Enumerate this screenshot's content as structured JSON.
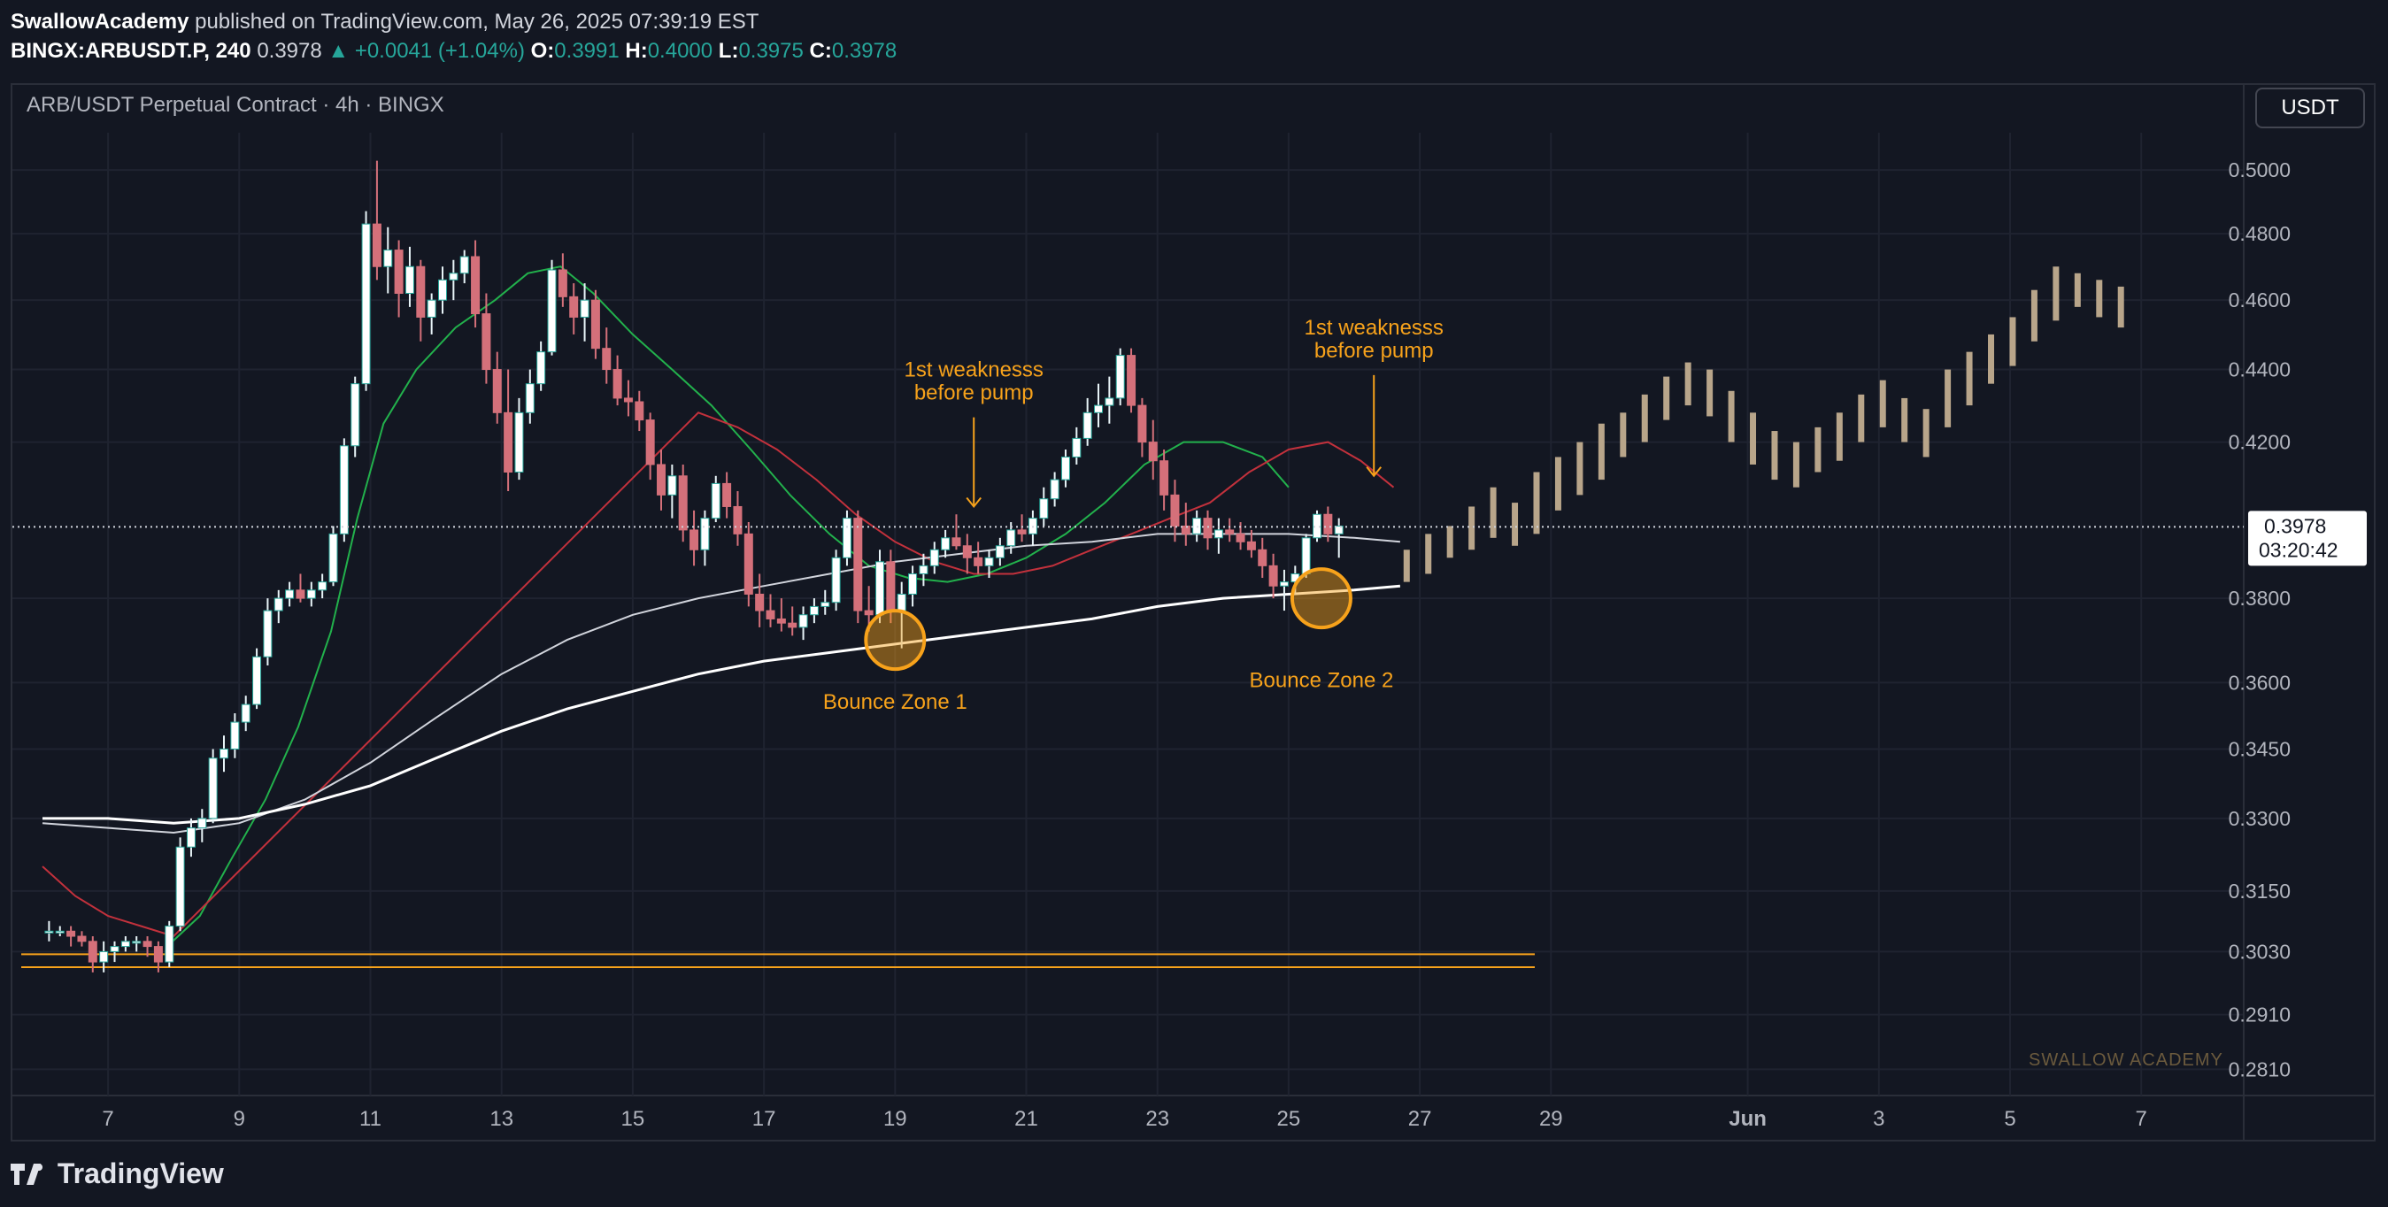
{
  "header": {
    "author": "SwallowAcademy",
    "published": "published on TradingView.com, May 26, 2025 07:39:19 EST",
    "symbol": "BINGX:ARBUSDT.P, 240",
    "last": "0.3978",
    "change": "▲ +0.0041 (+1.04%)",
    "o_label": "O:",
    "o_value": "0.3991",
    "h_label": "H:",
    "h_value": "0.4000",
    "l_label": "L:",
    "l_value": "0.3975",
    "c_label": "C:",
    "c_value": "0.3978"
  },
  "legend": {
    "title": "ARB/USDT Perpetual Contract · 4h · BINGX"
  },
  "currency_button": "USDT",
  "price_label": {
    "value": "0.3978",
    "countdown": "03:20:42"
  },
  "watermark": "SWALLOW ACADEMY",
  "footer": {
    "brand": "TradingView"
  },
  "colors": {
    "background": "#131722",
    "up": "#26a69a",
    "down": "#ef5350",
    "candle_up": "#e8f4f8",
    "candle_down": "#d4707a",
    "ema_fast": "#22b14c",
    "ema_mid": "#c2313c",
    "ma_slow": "#d1d4dc",
    "ma_long": "#ffffff",
    "annotation": "#f7a21b",
    "projection": "#b8a58a"
  },
  "chart_data": {
    "type": "candlestick",
    "y_axis": {
      "scale": "log",
      "ticks": [
        "0.5000",
        "0.4800",
        "0.4600",
        "0.4400",
        "0.4200",
        "0.3800",
        "0.3600",
        "0.3450",
        "0.3300",
        "0.3150",
        "0.3030",
        "0.2910",
        "0.2810"
      ],
      "range": [
        0.276,
        0.515
      ]
    },
    "x_axis": {
      "ticks": [
        "7",
        "9",
        "11",
        "13",
        "15",
        "17",
        "19",
        "21",
        "23",
        "25",
        "27",
        "29",
        "Jun",
        "3",
        "5",
        "7"
      ],
      "tick_days": [
        7,
        9,
        11,
        13,
        15,
        17,
        19,
        21,
        23,
        25,
        27,
        29,
        32,
        34,
        36,
        38
      ]
    },
    "candle_interval": "4h",
    "ohlc_start_day": 6.1,
    "ohlc": [
      [
        0.307,
        0.309,
        0.305,
        0.307
      ],
      [
        0.307,
        0.308,
        0.306,
        0.307
      ],
      [
        0.307,
        0.308,
        0.304,
        0.306
      ],
      [
        0.306,
        0.307,
        0.304,
        0.305
      ],
      [
        0.305,
        0.306,
        0.299,
        0.301
      ],
      [
        0.301,
        0.305,
        0.299,
        0.303
      ],
      [
        0.303,
        0.305,
        0.301,
        0.304
      ],
      [
        0.304,
        0.306,
        0.303,
        0.305
      ],
      [
        0.305,
        0.306,
        0.303,
        0.305
      ],
      [
        0.305,
        0.306,
        0.302,
        0.304
      ],
      [
        0.304,
        0.305,
        0.299,
        0.301
      ],
      [
        0.301,
        0.309,
        0.3,
        0.308
      ],
      [
        0.308,
        0.326,
        0.307,
        0.324
      ],
      [
        0.324,
        0.33,
        0.322,
        0.328
      ],
      [
        0.328,
        0.332,
        0.325,
        0.33
      ],
      [
        0.33,
        0.345,
        0.329,
        0.343
      ],
      [
        0.343,
        0.348,
        0.34,
        0.345
      ],
      [
        0.345,
        0.353,
        0.343,
        0.351
      ],
      [
        0.351,
        0.357,
        0.349,
        0.355
      ],
      [
        0.355,
        0.368,
        0.354,
        0.366
      ],
      [
        0.366,
        0.38,
        0.364,
        0.377
      ],
      [
        0.377,
        0.382,
        0.374,
        0.38
      ],
      [
        0.38,
        0.384,
        0.378,
        0.382
      ],
      [
        0.382,
        0.386,
        0.379,
        0.38
      ],
      [
        0.38,
        0.384,
        0.378,
        0.382
      ],
      [
        0.382,
        0.386,
        0.38,
        0.384
      ],
      [
        0.384,
        0.398,
        0.383,
        0.396
      ],
      [
        0.396,
        0.421,
        0.394,
        0.419
      ],
      [
        0.419,
        0.438,
        0.416,
        0.436
      ],
      [
        0.436,
        0.487,
        0.434,
        0.483
      ],
      [
        0.483,
        0.503,
        0.466,
        0.47
      ],
      [
        0.47,
        0.482,
        0.462,
        0.475
      ],
      [
        0.475,
        0.478,
        0.455,
        0.462
      ],
      [
        0.462,
        0.476,
        0.458,
        0.47
      ],
      [
        0.47,
        0.472,
        0.448,
        0.455
      ],
      [
        0.455,
        0.462,
        0.45,
        0.46
      ],
      [
        0.46,
        0.47,
        0.456,
        0.466
      ],
      [
        0.466,
        0.472,
        0.46,
        0.468
      ],
      [
        0.468,
        0.475,
        0.465,
        0.473
      ],
      [
        0.473,
        0.478,
        0.452,
        0.456
      ],
      [
        0.456,
        0.462,
        0.436,
        0.44
      ],
      [
        0.44,
        0.445,
        0.425,
        0.428
      ],
      [
        0.428,
        0.44,
        0.407,
        0.412
      ],
      [
        0.412,
        0.432,
        0.41,
        0.428
      ],
      [
        0.428,
        0.44,
        0.425,
        0.436
      ],
      [
        0.436,
        0.448,
        0.434,
        0.445
      ],
      [
        0.445,
        0.472,
        0.444,
        0.469
      ],
      [
        0.469,
        0.474,
        0.458,
        0.461
      ],
      [
        0.461,
        0.465,
        0.45,
        0.455
      ],
      [
        0.455,
        0.465,
        0.448,
        0.46
      ],
      [
        0.46,
        0.463,
        0.443,
        0.446
      ],
      [
        0.446,
        0.452,
        0.436,
        0.44
      ],
      [
        0.44,
        0.444,
        0.43,
        0.432
      ],
      [
        0.432,
        0.437,
        0.427,
        0.431
      ],
      [
        0.431,
        0.434,
        0.423,
        0.426
      ],
      [
        0.426,
        0.428,
        0.41,
        0.414
      ],
      [
        0.414,
        0.418,
        0.402,
        0.406
      ],
      [
        0.406,
        0.414,
        0.4,
        0.411
      ],
      [
        0.411,
        0.414,
        0.394,
        0.397
      ],
      [
        0.397,
        0.402,
        0.388,
        0.392
      ],
      [
        0.392,
        0.402,
        0.388,
        0.4
      ],
      [
        0.4,
        0.411,
        0.399,
        0.409
      ],
      [
        0.409,
        0.412,
        0.4,
        0.403
      ],
      [
        0.403,
        0.407,
        0.393,
        0.396
      ],
      [
        0.396,
        0.399,
        0.378,
        0.381
      ],
      [
        0.381,
        0.386,
        0.373,
        0.377
      ],
      [
        0.377,
        0.381,
        0.373,
        0.375
      ],
      [
        0.375,
        0.38,
        0.372,
        0.374
      ],
      [
        0.374,
        0.378,
        0.371,
        0.373
      ],
      [
        0.373,
        0.378,
        0.37,
        0.376
      ],
      [
        0.376,
        0.38,
        0.374,
        0.378
      ],
      [
        0.378,
        0.382,
        0.376,
        0.379
      ],
      [
        0.379,
        0.392,
        0.377,
        0.39
      ],
      [
        0.39,
        0.402,
        0.388,
        0.4
      ],
      [
        0.4,
        0.402,
        0.374,
        0.377
      ],
      [
        0.377,
        0.383,
        0.372,
        0.376
      ],
      [
        0.376,
        0.392,
        0.374,
        0.389
      ],
      [
        0.389,
        0.392,
        0.374,
        0.377
      ],
      [
        0.377,
        0.384,
        0.368,
        0.381
      ],
      [
        0.381,
        0.388,
        0.378,
        0.386
      ],
      [
        0.386,
        0.391,
        0.383,
        0.388
      ],
      [
        0.388,
        0.394,
        0.386,
        0.392
      ],
      [
        0.392,
        0.397,
        0.39,
        0.395
      ],
      [
        0.395,
        0.401,
        0.392,
        0.393
      ],
      [
        0.393,
        0.396,
        0.386,
        0.39
      ],
      [
        0.39,
        0.394,
        0.386,
        0.388
      ],
      [
        0.388,
        0.392,
        0.385,
        0.39
      ],
      [
        0.39,
        0.395,
        0.388,
        0.393
      ],
      [
        0.393,
        0.399,
        0.391,
        0.397
      ],
      [
        0.397,
        0.401,
        0.394,
        0.396
      ],
      [
        0.396,
        0.402,
        0.393,
        0.4
      ],
      [
        0.4,
        0.408,
        0.398,
        0.405
      ],
      [
        0.405,
        0.412,
        0.403,
        0.41
      ],
      [
        0.41,
        0.418,
        0.408,
        0.416
      ],
      [
        0.416,
        0.424,
        0.414,
        0.421
      ],
      [
        0.421,
        0.432,
        0.419,
        0.428
      ],
      [
        0.428,
        0.436,
        0.424,
        0.43
      ],
      [
        0.43,
        0.438,
        0.425,
        0.432
      ],
      [
        0.432,
        0.446,
        0.43,
        0.444
      ],
      [
        0.444,
        0.446,
        0.428,
        0.43
      ],
      [
        0.43,
        0.432,
        0.416,
        0.42
      ],
      [
        0.42,
        0.426,
        0.41,
        0.415
      ],
      [
        0.415,
        0.418,
        0.402,
        0.406
      ],
      [
        0.406,
        0.41,
        0.394,
        0.398
      ],
      [
        0.398,
        0.404,
        0.393,
        0.396
      ],
      [
        0.396,
        0.402,
        0.394,
        0.4
      ],
      [
        0.4,
        0.402,
        0.392,
        0.395
      ],
      [
        0.395,
        0.4,
        0.391,
        0.397
      ],
      [
        0.397,
        0.4,
        0.394,
        0.396
      ],
      [
        0.396,
        0.399,
        0.392,
        0.394
      ],
      [
        0.394,
        0.397,
        0.39,
        0.392
      ],
      [
        0.392,
        0.395,
        0.385,
        0.388
      ],
      [
        0.388,
        0.391,
        0.38,
        0.383
      ],
      [
        0.383,
        0.387,
        0.377,
        0.384
      ],
      [
        0.384,
        0.388,
        0.381,
        0.386
      ],
      [
        0.386,
        0.396,
        0.385,
        0.395
      ],
      [
        0.395,
        0.402,
        0.394,
        0.401
      ],
      [
        0.401,
        0.403,
        0.394,
        0.396
      ],
      [
        0.396,
        0.4,
        0.39,
        0.398
      ]
    ],
    "projection": {
      "description": "forecast bars",
      "start_day": 26.8,
      "values": [
        [
          0.384,
          0.392
        ],
        [
          0.386,
          0.396
        ],
        [
          0.39,
          0.398
        ],
        [
          0.392,
          0.403
        ],
        [
          0.395,
          0.408
        ],
        [
          0.393,
          0.404
        ],
        [
          0.396,
          0.412
        ],
        [
          0.402,
          0.416
        ],
        [
          0.406,
          0.42
        ],
        [
          0.41,
          0.425
        ],
        [
          0.416,
          0.428
        ],
        [
          0.42,
          0.433
        ],
        [
          0.426,
          0.438
        ],
        [
          0.43,
          0.442
        ],
        [
          0.427,
          0.44
        ],
        [
          0.42,
          0.434
        ],
        [
          0.414,
          0.428
        ],
        [
          0.41,
          0.423
        ],
        [
          0.408,
          0.42
        ],
        [
          0.412,
          0.424
        ],
        [
          0.415,
          0.428
        ],
        [
          0.42,
          0.433
        ],
        [
          0.424,
          0.437
        ],
        [
          0.42,
          0.432
        ],
        [
          0.416,
          0.429
        ],
        [
          0.424,
          0.44
        ],
        [
          0.43,
          0.445
        ],
        [
          0.436,
          0.45
        ],
        [
          0.441,
          0.455
        ],
        [
          0.448,
          0.463
        ],
        [
          0.454,
          0.47
        ],
        [
          0.458,
          0.468
        ],
        [
          0.455,
          0.466
        ],
        [
          0.452,
          0.464
        ]
      ]
    },
    "moving_averages": [
      {
        "color_key": "ema_fast",
        "points": [
          [
            7.9,
            0.304
          ],
          [
            8.4,
            0.31
          ],
          [
            8.9,
            0.322
          ],
          [
            9.4,
            0.334
          ],
          [
            9.9,
            0.35
          ],
          [
            10.4,
            0.372
          ],
          [
            10.8,
            0.4
          ],
          [
            11.2,
            0.425
          ],
          [
            11.7,
            0.44
          ],
          [
            12.3,
            0.452
          ],
          [
            12.9,
            0.46
          ],
          [
            13.4,
            0.468
          ],
          [
            13.9,
            0.47
          ],
          [
            14.4,
            0.462
          ],
          [
            15.0,
            0.45
          ],
          [
            15.6,
            0.44
          ],
          [
            16.2,
            0.43
          ],
          [
            16.8,
            0.418
          ],
          [
            17.4,
            0.406
          ],
          [
            18.0,
            0.396
          ],
          [
            18.6,
            0.388
          ],
          [
            19.2,
            0.385
          ],
          [
            19.8,
            0.384
          ],
          [
            20.4,
            0.386
          ],
          [
            21.0,
            0.39
          ],
          [
            21.6,
            0.396
          ],
          [
            22.2,
            0.404
          ],
          [
            22.8,
            0.414
          ],
          [
            23.4,
            0.42
          ],
          [
            24.0,
            0.42
          ],
          [
            24.6,
            0.416
          ],
          [
            25.0,
            0.408
          ]
        ]
      },
      {
        "color_key": "ema_mid",
        "points": [
          [
            6.0,
            0.32
          ],
          [
            6.5,
            0.314
          ],
          [
            7.0,
            0.31
          ],
          [
            7.5,
            0.308
          ],
          [
            8.0,
            0.306
          ],
          [
            16.0,
            0.428
          ],
          [
            16.6,
            0.424
          ],
          [
            17.2,
            0.418
          ],
          [
            17.8,
            0.41
          ],
          [
            18.4,
            0.401
          ],
          [
            19.0,
            0.394
          ],
          [
            19.6,
            0.389
          ],
          [
            20.2,
            0.386
          ],
          [
            20.8,
            0.386
          ],
          [
            21.4,
            0.388
          ],
          [
            22.0,
            0.392
          ],
          [
            22.6,
            0.396
          ],
          [
            23.2,
            0.4
          ],
          [
            23.8,
            0.404
          ],
          [
            24.4,
            0.412
          ],
          [
            25.0,
            0.418
          ],
          [
            25.6,
            0.42
          ],
          [
            26.1,
            0.415
          ],
          [
            26.6,
            0.408
          ]
        ]
      },
      {
        "color_key": "ma_slow",
        "points": [
          [
            6.0,
            0.329
          ],
          [
            7.0,
            0.328
          ],
          [
            8.0,
            0.327
          ],
          [
            9.0,
            0.329
          ],
          [
            10.0,
            0.334
          ],
          [
            11.0,
            0.342
          ],
          [
            12.0,
            0.352
          ],
          [
            13.0,
            0.362
          ],
          [
            14.0,
            0.37
          ],
          [
            15.0,
            0.376
          ],
          [
            16.0,
            0.38
          ],
          [
            17.0,
            0.383
          ],
          [
            18.0,
            0.386
          ],
          [
            19.0,
            0.389
          ],
          [
            20.0,
            0.391
          ],
          [
            21.0,
            0.393
          ],
          [
            22.0,
            0.394
          ],
          [
            23.0,
            0.396
          ],
          [
            24.0,
            0.396
          ],
          [
            25.0,
            0.396
          ],
          [
            26.0,
            0.395
          ],
          [
            26.7,
            0.394
          ]
        ]
      },
      {
        "color_key": "ma_long",
        "points": [
          [
            6.0,
            0.33
          ],
          [
            7.0,
            0.33
          ],
          [
            8.0,
            0.329
          ],
          [
            9.0,
            0.33
          ],
          [
            10.0,
            0.333
          ],
          [
            11.0,
            0.337
          ],
          [
            12.0,
            0.343
          ],
          [
            13.0,
            0.349
          ],
          [
            14.0,
            0.354
          ],
          [
            15.0,
            0.358
          ],
          [
            16.0,
            0.362
          ],
          [
            17.0,
            0.365
          ],
          [
            18.0,
            0.367
          ],
          [
            19.0,
            0.369
          ],
          [
            20.0,
            0.371
          ],
          [
            21.0,
            0.373
          ],
          [
            22.0,
            0.375
          ],
          [
            23.0,
            0.378
          ],
          [
            24.0,
            0.38
          ],
          [
            25.0,
            0.381
          ],
          [
            26.0,
            0.382
          ],
          [
            26.7,
            0.383
          ]
        ]
      }
    ],
    "horizontal_levels": [
      0.3025,
      0.3
    ],
    "current_price": 0.3978,
    "annotations": [
      {
        "text": "1st weaknesss",
        "text2": "before pump",
        "day": 20.2,
        "price": 0.438,
        "arrow_to": 0.403
      },
      {
        "text": "1st weaknesss",
        "text2": "before pump",
        "day": 26.3,
        "price": 0.45,
        "arrow_to": 0.411
      },
      {
        "text": "Bounce Zone 1",
        "day": 19.0,
        "price": 0.354,
        "circle_price": 0.37
      },
      {
        "text": "Bounce Zone 2",
        "day": 25.5,
        "price": 0.359,
        "circle_price": 0.38
      }
    ]
  }
}
